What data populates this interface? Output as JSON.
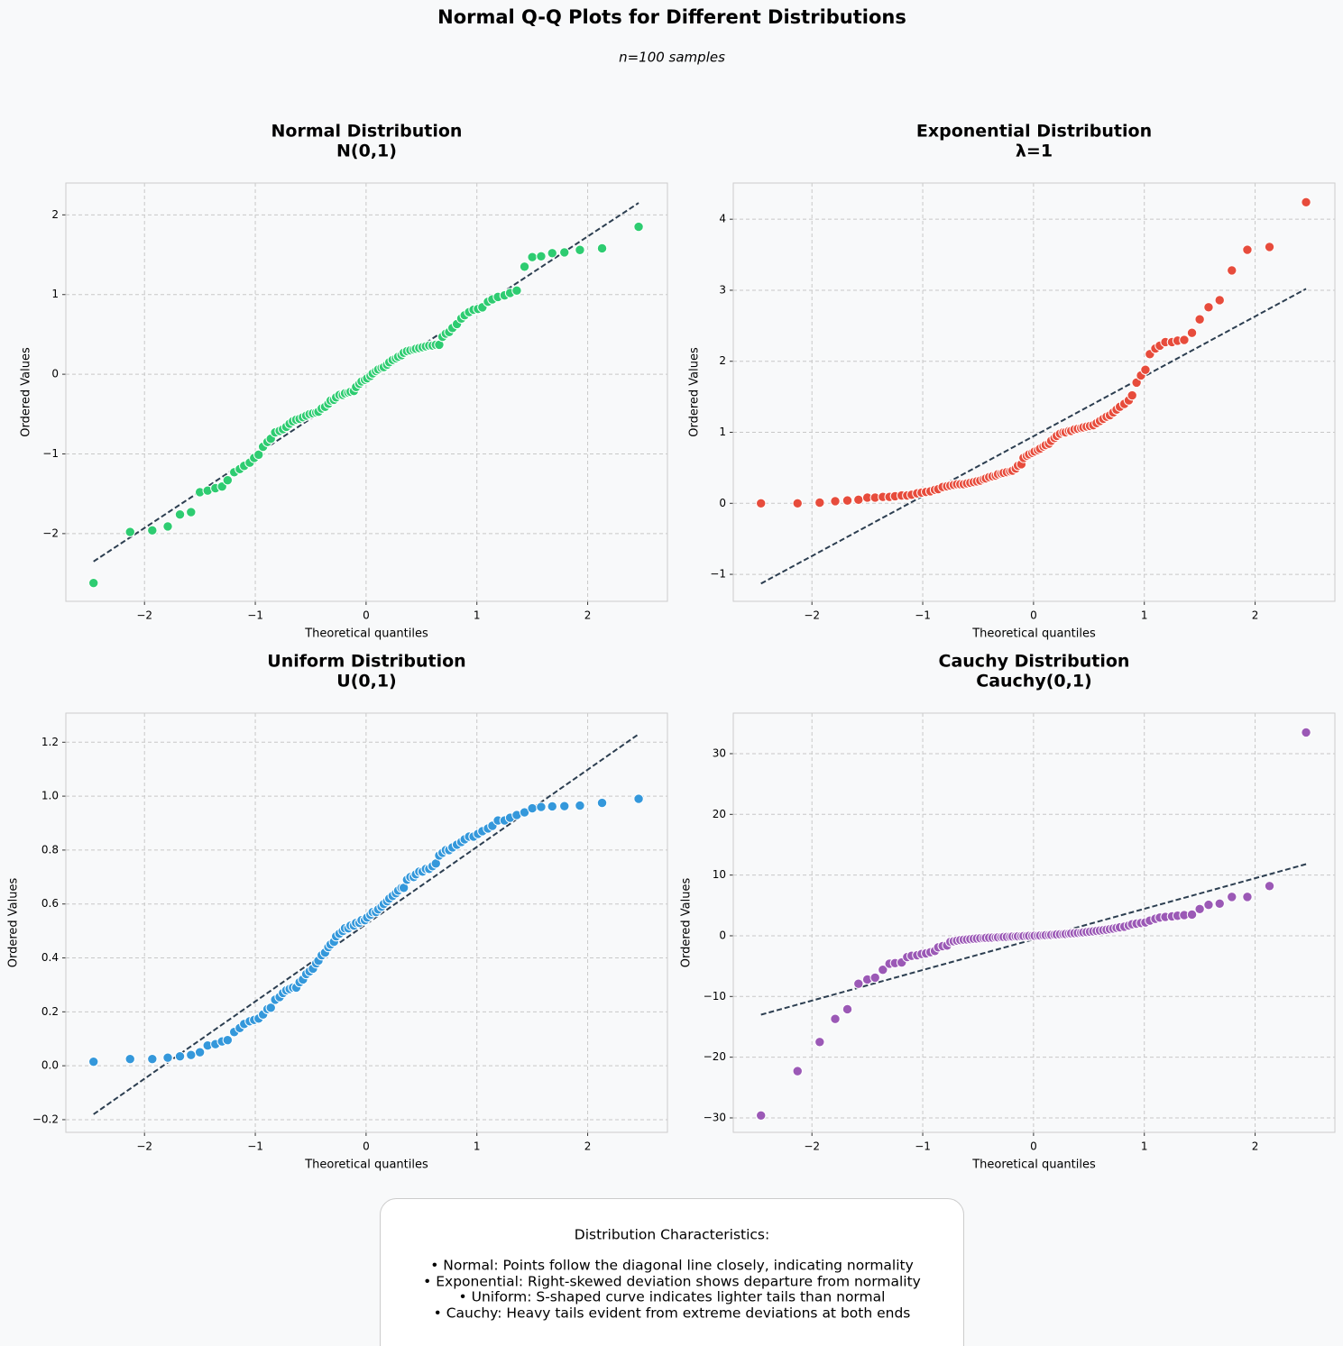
{
  "title": "Normal Q-Q Plots for Different Distributions",
  "subtitle": "n=100 samples",
  "notes": {
    "heading": "Distribution Characteristics:",
    "lines": [
      "• Normal: Points follow the diagonal line closely, indicating normality",
      "• Exponential: Right-skewed deviation shows departure from normality",
      "• Uniform: S-shaped curve indicates lighter tails than normal",
      "• Cauchy: Heavy tails evident from extreme deviations at both ends"
    ]
  },
  "chart_data": [
    {
      "type": "scatter",
      "title": "Normal Distribution",
      "subtitle": "N(0,1)",
      "x_label": "Theoretical quantiles",
      "y_label": "Ordered Values",
      "grid": true,
      "color": "#2ecc71",
      "x": [
        -2.46,
        -2.13,
        -1.93,
        -1.79,
        -1.68,
        -1.58,
        -1.5,
        -1.43,
        -1.36,
        -1.3,
        -1.25,
        -1.19,
        -1.14,
        -1.1,
        -1.05,
        -1.01,
        -0.97,
        -0.93,
        -0.89,
        -0.86,
        -0.82,
        -0.78,
        -0.75,
        -0.72,
        -0.69,
        -0.66,
        -0.63,
        -0.6,
        -0.57,
        -0.54,
        -0.51,
        -0.48,
        -0.45,
        -0.43,
        -0.4,
        -0.37,
        -0.34,
        -0.32,
        -0.29,
        -0.27,
        -0.24,
        -0.21,
        -0.19,
        -0.16,
        -0.14,
        -0.11,
        -0.09,
        -0.06,
        -0.04,
        -0.01,
        0.01,
        0.04,
        0.06,
        0.09,
        0.11,
        0.14,
        0.16,
        0.19,
        0.21,
        0.24,
        0.27,
        0.29,
        0.32,
        0.34,
        0.37,
        0.4,
        0.43,
        0.45,
        0.48,
        0.51,
        0.54,
        0.57,
        0.6,
        0.63,
        0.66,
        0.69,
        0.72,
        0.75,
        0.78,
        0.82,
        0.86,
        0.89,
        0.93,
        0.97,
        1.01,
        1.05,
        1.1,
        1.14,
        1.19,
        1.25,
        1.3,
        1.36,
        1.43,
        1.5,
        1.58,
        1.68,
        1.79,
        1.93,
        2.13,
        2.46
      ],
      "values": [
        -2.62,
        -1.98,
        -1.96,
        -1.91,
        -1.76,
        -1.73,
        -1.48,
        -1.46,
        -1.43,
        -1.41,
        -1.33,
        -1.23,
        -1.19,
        -1.15,
        -1.11,
        -1.05,
        -1.01,
        -0.91,
        -0.85,
        -0.81,
        -0.73,
        -0.71,
        -0.69,
        -0.66,
        -0.62,
        -0.59,
        -0.57,
        -0.56,
        -0.54,
        -0.52,
        -0.5,
        -0.49,
        -0.48,
        -0.47,
        -0.43,
        -0.41,
        -0.37,
        -0.33,
        -0.32,
        -0.29,
        -0.26,
        -0.26,
        -0.24,
        -0.23,
        -0.22,
        -0.21,
        -0.16,
        -0.12,
        -0.09,
        -0.07,
        -0.05,
        -0.02,
        0.01,
        0.04,
        0.06,
        0.08,
        0.09,
        0.12,
        0.15,
        0.18,
        0.2,
        0.22,
        0.24,
        0.27,
        0.29,
        0.3,
        0.31,
        0.32,
        0.33,
        0.34,
        0.35,
        0.36,
        0.36,
        0.37,
        0.37,
        0.47,
        0.51,
        0.53,
        0.58,
        0.63,
        0.7,
        0.74,
        0.78,
        0.81,
        0.82,
        0.84,
        0.91,
        0.94,
        0.97,
        0.99,
        1.02,
        1.05,
        1.35,
        1.47,
        1.48,
        1.52,
        1.53,
        1.56,
        1.58,
        1.85
      ],
      "fit_line": {
        "x": [
          -2.46,
          2.46
        ],
        "values": [
          -2.35,
          2.15
        ],
        "color": "#2c3e50"
      },
      "xlim": [
        -2.71,
        2.72
      ],
      "ylim": [
        -2.85,
        2.4
      ],
      "xticks": [
        {
          "value": -2,
          "label": "−2"
        },
        {
          "value": -1,
          "label": "−1"
        },
        0,
        1,
        2
      ],
      "yticks": [
        {
          "value": -2,
          "label": "−2"
        },
        {
          "value": -1,
          "label": "−1"
        },
        0,
        1,
        2
      ]
    },
    {
      "type": "scatter",
      "title": "Exponential Distribution",
      "subtitle": "λ=1",
      "x_label": "Theoretical quantiles",
      "y_label": "Ordered Values",
      "grid": true,
      "color": "#e74c3c",
      "x": [
        -2.46,
        -2.13,
        -1.93,
        -1.79,
        -1.68,
        -1.58,
        -1.5,
        -1.43,
        -1.36,
        -1.3,
        -1.25,
        -1.19,
        -1.14,
        -1.1,
        -1.05,
        -1.01,
        -0.97,
        -0.93,
        -0.89,
        -0.86,
        -0.82,
        -0.78,
        -0.75,
        -0.72,
        -0.69,
        -0.66,
        -0.63,
        -0.6,
        -0.57,
        -0.54,
        -0.51,
        -0.48,
        -0.45,
        -0.43,
        -0.4,
        -0.37,
        -0.34,
        -0.32,
        -0.29,
        -0.27,
        -0.24,
        -0.21,
        -0.19,
        -0.16,
        -0.14,
        -0.11,
        -0.09,
        -0.06,
        -0.04,
        -0.01,
        0.01,
        0.04,
        0.06,
        0.09,
        0.11,
        0.14,
        0.16,
        0.19,
        0.21,
        0.24,
        0.27,
        0.29,
        0.32,
        0.34,
        0.37,
        0.4,
        0.43,
        0.45,
        0.48,
        0.51,
        0.54,
        0.57,
        0.6,
        0.63,
        0.66,
        0.69,
        0.72,
        0.75,
        0.78,
        0.82,
        0.86,
        0.89,
        0.93,
        0.97,
        1.01,
        1.05,
        1.1,
        1.14,
        1.19,
        1.25,
        1.3,
        1.36,
        1.43,
        1.5,
        1.58,
        1.68,
        1.79,
        1.93,
        2.13,
        2.46
      ],
      "values": [
        0.0,
        0.0,
        0.01,
        0.03,
        0.04,
        0.05,
        0.08,
        0.08,
        0.09,
        0.09,
        0.1,
        0.11,
        0.11,
        0.12,
        0.14,
        0.15,
        0.16,
        0.17,
        0.19,
        0.2,
        0.23,
        0.24,
        0.25,
        0.26,
        0.27,
        0.27,
        0.27,
        0.28,
        0.29,
        0.3,
        0.31,
        0.32,
        0.34,
        0.35,
        0.37,
        0.38,
        0.39,
        0.41,
        0.42,
        0.43,
        0.44,
        0.45,
        0.46,
        0.49,
        0.53,
        0.55,
        0.64,
        0.67,
        0.69,
        0.71,
        0.73,
        0.75,
        0.77,
        0.8,
        0.82,
        0.84,
        0.88,
        0.92,
        0.95,
        0.98,
        1.0,
        1.0,
        1.02,
        1.02,
        1.04,
        1.05,
        1.06,
        1.07,
        1.08,
        1.09,
        1.1,
        1.13,
        1.16,
        1.19,
        1.22,
        1.24,
        1.28,
        1.32,
        1.36,
        1.4,
        1.45,
        1.52,
        1.7,
        1.8,
        1.88,
        2.1,
        2.18,
        2.22,
        2.27,
        2.27,
        2.29,
        2.3,
        2.4,
        2.59,
        2.76,
        2.86,
        3.28,
        3.57,
        3.61,
        4.24
      ],
      "fit_line": {
        "x": [
          -2.46,
          2.46
        ],
        "values": [
          -1.13,
          3.02
        ],
        "color": "#2c3e50"
      },
      "xlim": [
        -2.71,
        2.72
      ],
      "ylim": [
        -1.38,
        4.51
      ],
      "xticks": [
        {
          "value": -2,
          "label": "−2"
        },
        {
          "value": -1,
          "label": "−1"
        },
        0,
        1,
        2
      ],
      "yticks": [
        {
          "value": -1,
          "label": "−1"
        },
        0,
        1,
        2,
        3,
        4
      ]
    },
    {
      "type": "scatter",
      "title": "Uniform Distribution",
      "subtitle": "U(0,1)",
      "x_label": "Theoretical quantiles",
      "y_label": "Ordered Values",
      "grid": true,
      "color": "#3498db",
      "x": [
        -2.46,
        -2.13,
        -1.93,
        -1.79,
        -1.68,
        -1.58,
        -1.5,
        -1.43,
        -1.36,
        -1.3,
        -1.25,
        -1.19,
        -1.14,
        -1.1,
        -1.05,
        -1.01,
        -0.97,
        -0.93,
        -0.89,
        -0.86,
        -0.82,
        -0.78,
        -0.75,
        -0.72,
        -0.69,
        -0.66,
        -0.63,
        -0.6,
        -0.57,
        -0.54,
        -0.51,
        -0.48,
        -0.45,
        -0.43,
        -0.4,
        -0.37,
        -0.34,
        -0.32,
        -0.29,
        -0.27,
        -0.24,
        -0.21,
        -0.19,
        -0.16,
        -0.14,
        -0.11,
        -0.09,
        -0.06,
        -0.04,
        -0.01,
        0.01,
        0.04,
        0.06,
        0.09,
        0.11,
        0.14,
        0.16,
        0.19,
        0.21,
        0.24,
        0.27,
        0.29,
        0.32,
        0.34,
        0.37,
        0.4,
        0.43,
        0.45,
        0.48,
        0.51,
        0.54,
        0.57,
        0.6,
        0.63,
        0.66,
        0.69,
        0.72,
        0.75,
        0.78,
        0.82,
        0.86,
        0.89,
        0.93,
        0.97,
        1.01,
        1.05,
        1.1,
        1.14,
        1.19,
        1.25,
        1.3,
        1.36,
        1.43,
        1.5,
        1.58,
        1.68,
        1.79,
        1.93,
        2.13,
        2.46
      ],
      "values": [
        0.015,
        0.025,
        0.025,
        0.03,
        0.035,
        0.04,
        0.05,
        0.075,
        0.08,
        0.09,
        0.095,
        0.125,
        0.14,
        0.155,
        0.165,
        0.17,
        0.175,
        0.19,
        0.21,
        0.215,
        0.245,
        0.255,
        0.27,
        0.28,
        0.285,
        0.29,
        0.29,
        0.31,
        0.32,
        0.34,
        0.35,
        0.36,
        0.38,
        0.39,
        0.41,
        0.42,
        0.44,
        0.45,
        0.46,
        0.48,
        0.49,
        0.5,
        0.51,
        0.51,
        0.52,
        0.52,
        0.53,
        0.53,
        0.54,
        0.54,
        0.55,
        0.56,
        0.57,
        0.57,
        0.58,
        0.59,
        0.6,
        0.61,
        0.62,
        0.63,
        0.64,
        0.65,
        0.66,
        0.66,
        0.69,
        0.7,
        0.7,
        0.71,
        0.72,
        0.72,
        0.73,
        0.73,
        0.74,
        0.75,
        0.78,
        0.79,
        0.8,
        0.8,
        0.81,
        0.82,
        0.83,
        0.84,
        0.85,
        0.85,
        0.86,
        0.87,
        0.88,
        0.89,
        0.91,
        0.91,
        0.92,
        0.93,
        0.94,
        0.955,
        0.96,
        0.962,
        0.963,
        0.965,
        0.975,
        0.99
      ],
      "fit_line": {
        "x": [
          -2.46,
          2.46
        ],
        "values": [
          -0.18,
          1.23
        ],
        "color": "#2c3e50"
      },
      "xlim": [
        -2.71,
        2.72
      ],
      "ylim": [
        -0.247,
        1.308
      ],
      "xticks": [
        {
          "value": -2,
          "label": "−2"
        },
        {
          "value": -1,
          "label": "−1"
        },
        0,
        1,
        2
      ],
      "yticks": [
        {
          "value": -0.2,
          "label": "−0.2"
        },
        {
          "value": 0,
          "label": "0.0"
        },
        0.2,
        0.4,
        0.6,
        0.8,
        {
          "value": 1,
          "label": "1.0"
        },
        1.2
      ]
    },
    {
      "type": "scatter",
      "title": "Cauchy Distribution",
      "subtitle": "Cauchy(0,1)",
      "x_label": "Theoretical quantiles",
      "y_label": "Ordered Values",
      "grid": true,
      "color": "#9b59b6",
      "x": [
        -2.46,
        -2.13,
        -1.93,
        -1.79,
        -1.68,
        -1.58,
        -1.5,
        -1.43,
        -1.36,
        -1.3,
        -1.25,
        -1.19,
        -1.14,
        -1.1,
        -1.05,
        -1.01,
        -0.97,
        -0.93,
        -0.89,
        -0.86,
        -0.82,
        -0.78,
        -0.75,
        -0.72,
        -0.69,
        -0.66,
        -0.63,
        -0.6,
        -0.57,
        -0.54,
        -0.51,
        -0.48,
        -0.45,
        -0.43,
        -0.4,
        -0.37,
        -0.34,
        -0.32,
        -0.29,
        -0.27,
        -0.24,
        -0.21,
        -0.19,
        -0.16,
        -0.14,
        -0.11,
        -0.09,
        -0.06,
        -0.04,
        -0.01,
        0.01,
        0.04,
        0.06,
        0.09,
        0.11,
        0.14,
        0.16,
        0.19,
        0.21,
        0.24,
        0.27,
        0.29,
        0.32,
        0.34,
        0.37,
        0.4,
        0.43,
        0.45,
        0.48,
        0.51,
        0.54,
        0.57,
        0.6,
        0.63,
        0.66,
        0.69,
        0.72,
        0.75,
        0.78,
        0.82,
        0.86,
        0.89,
        0.93,
        0.97,
        1.01,
        1.05,
        1.1,
        1.14,
        1.19,
        1.25,
        1.3,
        1.36,
        1.43,
        1.5,
        1.58,
        1.68,
        1.79,
        1.93,
        2.13,
        2.46
      ],
      "values": [
        -29.6,
        -22.3,
        -17.5,
        -13.7,
        -12.1,
        -7.9,
        -7.2,
        -6.9,
        -5.6,
        -4.6,
        -4.5,
        -4.4,
        -3.5,
        -3.3,
        -3.2,
        -3.0,
        -2.9,
        -2.7,
        -2.5,
        -1.9,
        -1.7,
        -1.6,
        -1.0,
        -0.9,
        -0.8,
        -0.7,
        -0.65,
        -0.6,
        -0.55,
        -0.5,
        -0.45,
        -0.4,
        -0.38,
        -0.35,
        -0.32,
        -0.3,
        -0.27,
        -0.25,
        -0.22,
        -0.2,
        -0.18,
        -0.15,
        -0.13,
        -0.11,
        -0.09,
        -0.07,
        -0.05,
        -0.03,
        -0.02,
        -0.01,
        0.01,
        0.03,
        0.05,
        0.08,
        0.1,
        0.13,
        0.16,
        0.19,
        0.22,
        0.25,
        0.28,
        0.31,
        0.35,
        0.39,
        0.43,
        0.47,
        0.52,
        0.57,
        0.62,
        0.68,
        0.74,
        0.8,
        0.87,
        0.94,
        1.0,
        1.1,
        1.2,
        1.3,
        1.4,
        1.5,
        1.7,
        1.9,
        2.0,
        2.1,
        2.2,
        2.5,
        2.8,
        3.0,
        3.1,
        3.2,
        3.3,
        3.4,
        3.5,
        4.4,
        5.1,
        5.3,
        6.4,
        6.4,
        8.2,
        33.5
      ],
      "fit_line": {
        "x": [
          -2.46,
          2.46
        ],
        "values": [
          -13.0,
          11.8
        ],
        "color": "#2c3e50"
      },
      "xlim": [
        -2.71,
        2.72
      ],
      "ylim": [
        -32.38,
        36.68
      ],
      "xticks": [
        {
          "value": -2,
          "label": "−2"
        },
        {
          "value": -1,
          "label": "−1"
        },
        0,
        1,
        2
      ],
      "yticks": [
        {
          "value": -30,
          "label": "−30"
        },
        {
          "value": -20,
          "label": "−20"
        },
        {
          "value": -10,
          "label": "−10"
        },
        0,
        10,
        20,
        30
      ]
    }
  ]
}
